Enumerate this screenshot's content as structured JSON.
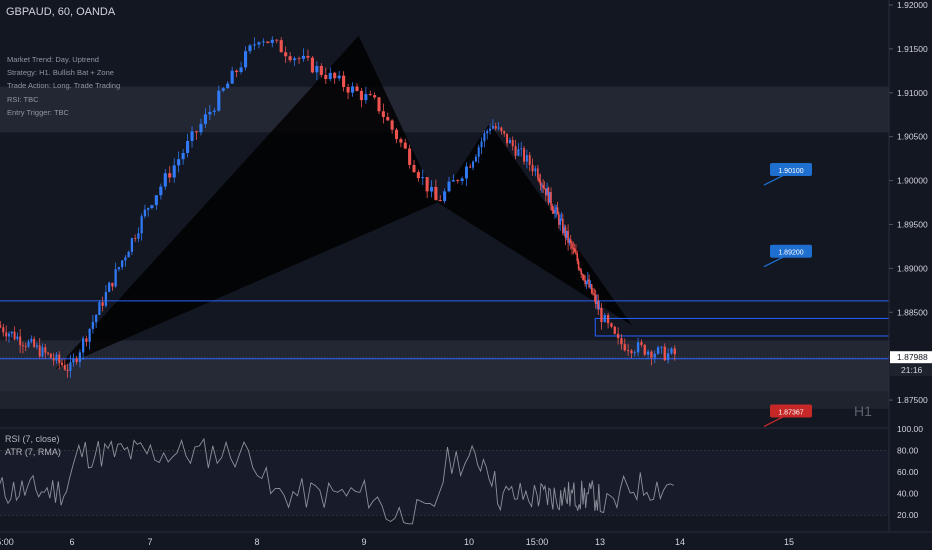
{
  "header": {
    "symbol": "GBPAUD, 60, OANDA"
  },
  "notes": [
    "Market Trend: Day. Uptrend",
    "Strategy: H1. Bullish Bat + Zone",
    "Trade Action: Long. Trade Trading",
    "RSI: TBC",
    "Entry Trigger: TBC"
  ],
  "timeframe_watermark": "H1",
  "indicators": {
    "rsi": "RSI (7, close)",
    "atr": "ATR (7, RMA)"
  },
  "colors": {
    "background": "#131722",
    "up": "#3179f5",
    "down": "#ef5350",
    "grid": "#1e222d",
    "zone": "#2a2e39",
    "zone_line": "#2962ff",
    "pattern": "#000000",
    "axis_text": "#d1d4dc",
    "price_tag": "#1e6fd0",
    "stop_tag": "#c62828",
    "line": "#8d919c"
  },
  "chart_data": [
    {
      "type": "candlestick",
      "title": "GBPAUD, 60, OANDA",
      "x_tick_labels": [
        "5:00",
        "6",
        "7",
        "8",
        "9",
        "10",
        "15:00",
        "13",
        "14",
        "15"
      ],
      "y_tick_labels": [
        "1.92000",
        "1.91500",
        "1.91000",
        "1.90500",
        "1.90000",
        "1.89500",
        "1.89000",
        "1.88500",
        "1.88000",
        "1.87500"
      ],
      "ylim": [
        1.8725,
        1.92
      ],
      "current_price": "1.87988",
      "countdown": "21:16",
      "key_points": [
        {
          "t": 6.0,
          "price": 1.8785
        },
        {
          "t": 8.05,
          "price": 1.9165
        },
        {
          "t": 9.15,
          "price": 1.9087
        },
        {
          "t": 9.72,
          "price": 1.8975
        },
        {
          "t": 10.35,
          "price": 1.9065
        },
        {
          "t": 13.0,
          "price": 1.8852
        },
        {
          "t": 13.25,
          "price": 1.8815
        },
        {
          "t": 13.85,
          "price": 1.8802
        }
      ],
      "candle_seed": 7,
      "harmonic_pattern": {
        "X": [
          5.75,
          1.8785
        ],
        "A": [
          8.95,
          1.9165
        ],
        "B": [
          9.7,
          1.8975
        ],
        "C": [
          10.3,
          1.9065
        ],
        "D": [
          13.4,
          1.8835
        ]
      },
      "zones": [
        {
          "top": 1.9107,
          "bottom": 1.9055
        },
        {
          "top": 1.8818,
          "bottom": 1.876
        }
      ],
      "horizontal_lines": [
        1.8863,
        1.8797
      ],
      "entry_box": {
        "t0": 12.85,
        "t1": 15.9,
        "top": 1.8843,
        "bottom": 1.8823
      },
      "price_tags": [
        {
          "label": "1.90100",
          "price": 1.9012,
          "kind": "target"
        },
        {
          "label": "1.89200",
          "price": 1.8919,
          "kind": "target"
        },
        {
          "label": "1.87367",
          "price": 1.8737,
          "kind": "stop"
        }
      ]
    },
    {
      "type": "line",
      "title": "RSI (7, close)",
      "y_tick_labels": [
        "100.00",
        "80.00",
        "60.00",
        "40.00",
        "20.00"
      ],
      "ylim": [
        10,
        100
      ],
      "series_seed": 11
    }
  ]
}
